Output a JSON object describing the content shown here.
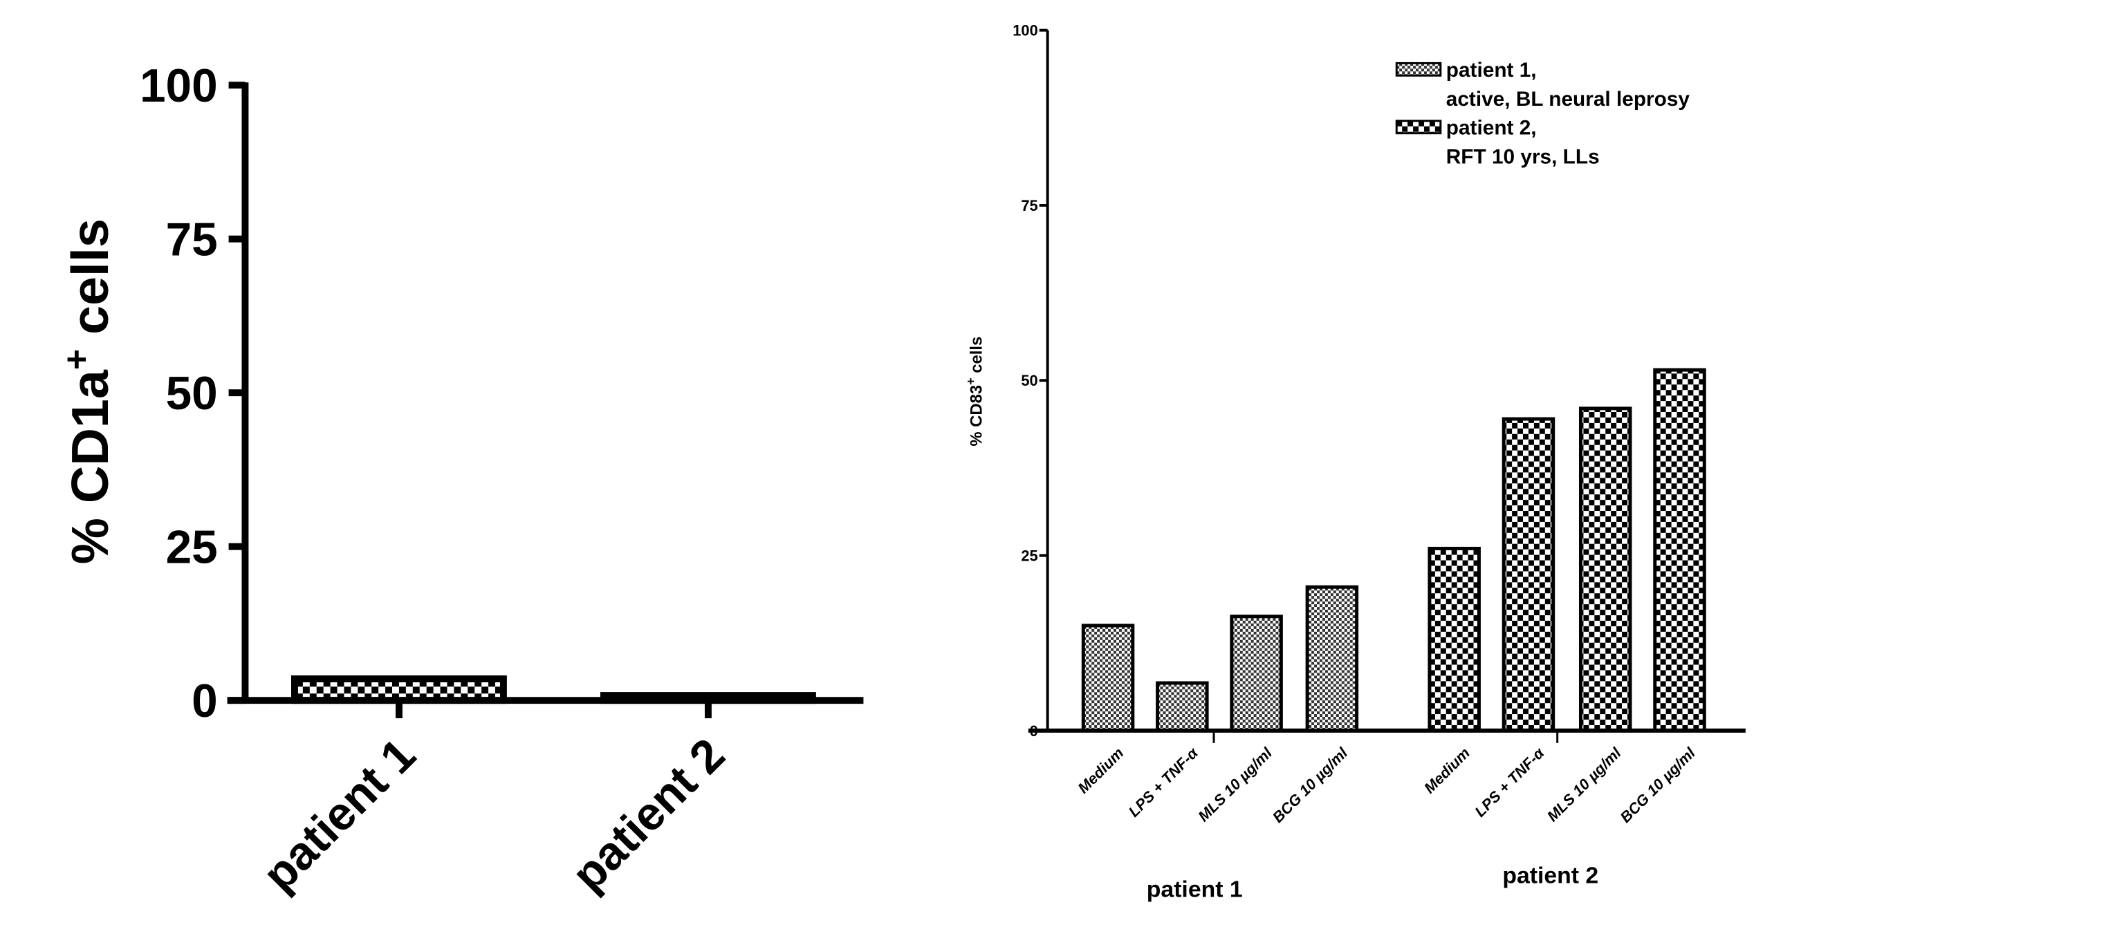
{
  "chart_data": [
    {
      "type": "bar",
      "title": "",
      "ylabel": "% CD1a+ cells",
      "ylabel_main": "% CD1a",
      "ylabel_sup": "+",
      "ylabel_tail": " cells",
      "xlabel": "",
      "ylim": [
        0,
        100
      ],
      "yticks": [
        "0",
        "25",
        "50",
        "75",
        "100"
      ],
      "categories": [
        "patient 1",
        "patient 2"
      ],
      "values": [
        3.5,
        0.8
      ],
      "grid": false
    },
    {
      "type": "bar",
      "title": "",
      "ylabel": "% CD83+ cells",
      "ylabel_main": "% CD83",
      "ylabel_sup": "+",
      "ylabel_tail": " cells",
      "ylim": [
        0,
        100
      ],
      "yticks": [
        "0",
        "25",
        "50",
        "75",
        "100"
      ],
      "groups": [
        "patient 1",
        "patient 2"
      ],
      "categories": [
        "Medium",
        "LPS + TNF-α",
        "MLS 10 µg/ml",
        "BCG 10 µg/ml"
      ],
      "series": [
        {
          "name": "patient 1",
          "values": [
            15,
            6.8,
            16.3,
            20.5
          ]
        },
        {
          "name": "patient 2",
          "values": [
            26,
            44.5,
            46,
            51.5
          ]
        }
      ],
      "legend": {
        "placement": "top-right",
        "entries": [
          {
            "line1": "patient 1,",
            "line2": "active, BL neural leprosy"
          },
          {
            "line1": "patient 2,",
            "line2": "RFT 10 yrs, LLs"
          }
        ]
      },
      "grid": false
    }
  ]
}
